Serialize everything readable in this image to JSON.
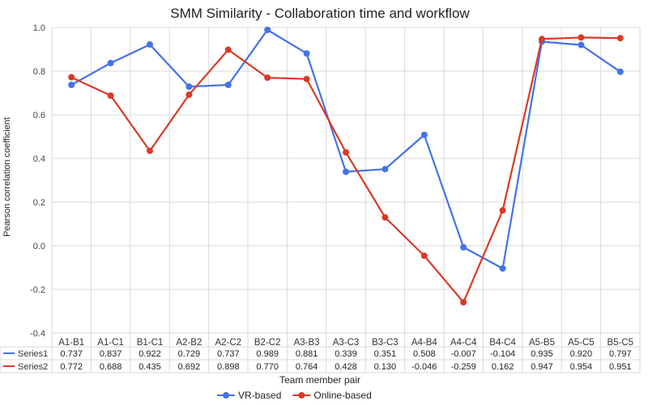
{
  "chart_data": {
    "type": "line",
    "title": "SMM Similarity - Collaboration time and workflow",
    "ylabel": "Pearson correlation coefficient",
    "xlabel": "Team member pair",
    "ylim": [
      -0.4,
      1.0
    ],
    "yticks": [
      "1.0",
      "0.8",
      "0.6",
      "0.4",
      "0.2",
      "0.0",
      "-0.2",
      "-0.4"
    ],
    "categories": [
      "A1-B1",
      "A1-C1",
      "B1-C1",
      "A2-B2",
      "A2-C2",
      "B2-C2",
      "A3-B3",
      "A3-C3",
      "B3-C3",
      "A4-B4",
      "A4-C4",
      "B4-C4",
      "A5-B5",
      "A5-C5",
      "B5-C5"
    ],
    "series": [
      {
        "name": "VR-based",
        "table_name": "Series1",
        "color": "#4472e8",
        "values": [
          0.737,
          0.837,
          0.922,
          0.729,
          0.737,
          0.989,
          0.881,
          0.339,
          0.351,
          0.508,
          -0.007,
          -0.104,
          0.935,
          0.92,
          0.797
        ],
        "labels": [
          "0.737",
          "0.837",
          "0.922",
          "0.729",
          "0.737",
          "0.989",
          "0.881",
          "0.339",
          "0.351",
          "0.508",
          "-0.007",
          "-0.104",
          "0.935",
          "0.920",
          "0.797"
        ]
      },
      {
        "name": "Online-based",
        "table_name": "Series2",
        "color": "#d93a26",
        "values": [
          0.772,
          0.688,
          0.435,
          0.692,
          0.898,
          0.77,
          0.764,
          0.428,
          0.13,
          -0.046,
          -0.259,
          0.162,
          0.947,
          0.954,
          0.951
        ],
        "labels": [
          "0.772",
          "0.688",
          "0.435",
          "0.692",
          "0.898",
          "0.770",
          "0.764",
          "0.428",
          "0.130",
          "-0.046",
          "-0.259",
          "0.162",
          "0.947",
          "0.954",
          "0.951"
        ]
      }
    ],
    "grid": true,
    "legend_position": "bottom"
  }
}
